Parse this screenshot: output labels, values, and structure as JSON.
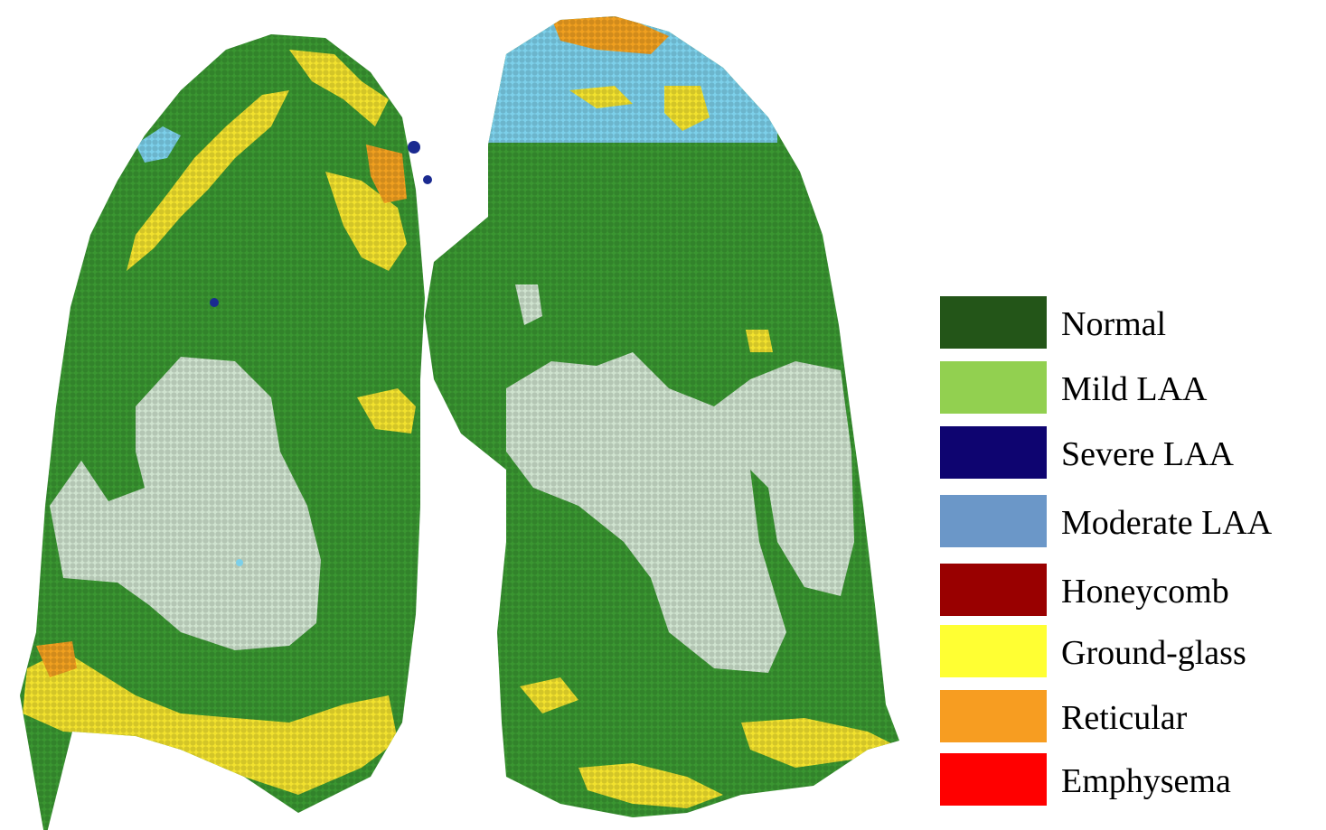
{
  "legend": {
    "items": [
      {
        "label": "Normal",
        "color": "#235518"
      },
      {
        "label": "Mild LAA",
        "color": "#92d050"
      },
      {
        "label": "Severe LAA",
        "color": "#0e0470"
      },
      {
        "label": "Moderate LAA",
        "color": "#6b97c8"
      },
      {
        "label": "Honeycomb",
        "color": "#990000"
      },
      {
        "label": "Ground-glass",
        "color": "#ffff33"
      },
      {
        "label": "Reticular",
        "color": "#f79d21"
      },
      {
        "label": "Emphysema",
        "color": "#ff0000"
      }
    ]
  },
  "render_colors": {
    "lung_green": "#3a9631",
    "lung_green_dark": "#2c7a26",
    "consolidation": "#cfe3cf",
    "ground_glass": "#f2e22e",
    "reticular": "#f0a020",
    "moderate_blue": "#7cd0ea",
    "severe_blue": "#1a2a90"
  }
}
